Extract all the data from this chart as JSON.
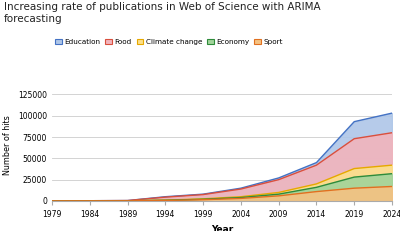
{
  "title": "Increasing rate of publications in Web of Science with ARIMA\nforecasting",
  "xlabel": "Year",
  "ylabel": "Number of hits",
  "years": [
    1979,
    1984,
    1989,
    1994,
    1999,
    2004,
    2009,
    2014,
    2019,
    2024
  ],
  "series": {
    "Education": {
      "color": "#aec6e8",
      "line_color": "#4472c4",
      "values": [
        200,
        300,
        500,
        5000,
        8000,
        15000,
        27000,
        45000,
        93000,
        103000
      ]
    },
    "Food": {
      "color": "#f2b4bc",
      "line_color": "#d94f3d",
      "values": [
        200,
        300,
        500,
        4500,
        7500,
        14000,
        25000,
        42000,
        73000,
        80000
      ]
    },
    "Climate change": {
      "color": "#fce08a",
      "line_color": "#e6a800",
      "values": [
        100,
        150,
        200,
        1000,
        2500,
        5000,
        10000,
        20000,
        38000,
        42000
      ]
    },
    "Economy": {
      "color": "#a2d49b",
      "line_color": "#2e8b3a",
      "values": [
        100,
        150,
        200,
        800,
        2000,
        4000,
        8000,
        16000,
        28000,
        32000
      ]
    },
    "Sport": {
      "color": "#f5c282",
      "line_color": "#e07020",
      "values": [
        100,
        150,
        200,
        600,
        1500,
        3000,
        6000,
        11000,
        15000,
        17000
      ]
    }
  },
  "ylim": [
    0,
    130000
  ],
  "yticks": [
    0,
    25000,
    50000,
    75000,
    100000,
    125000
  ],
  "xticks": [
    1979,
    1984,
    1989,
    1994,
    1999,
    2004,
    2009,
    2014,
    2019,
    2024
  ],
  "background_color": "#ffffff",
  "grid_color": "#cccccc"
}
